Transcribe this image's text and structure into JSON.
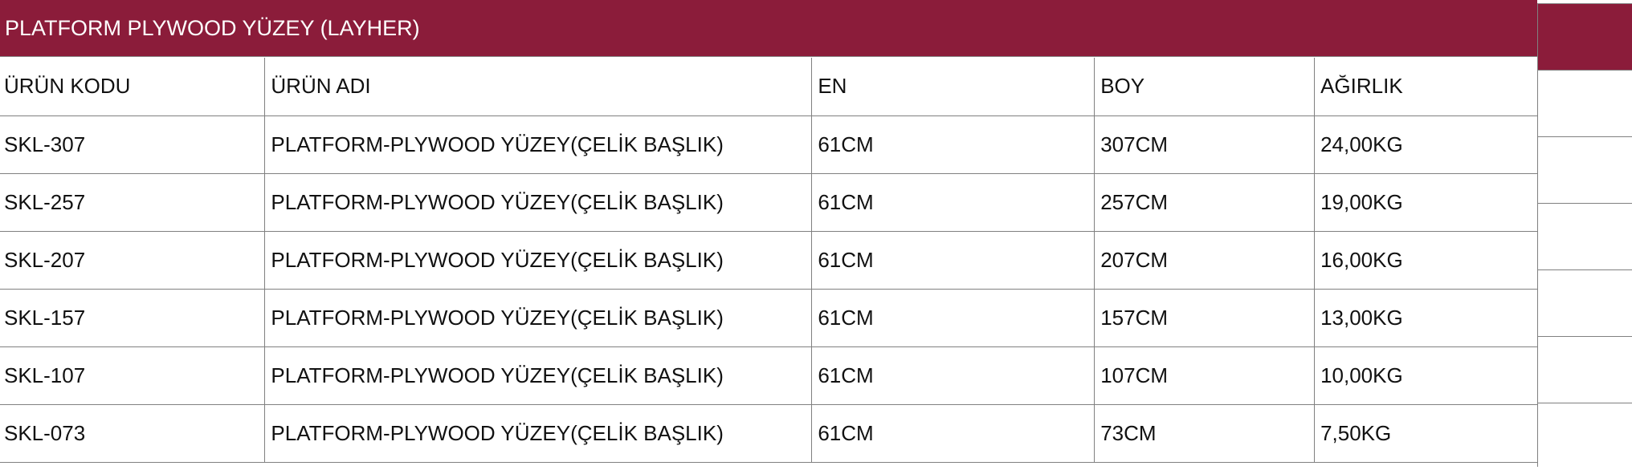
{
  "title": "PLATFORM PLYWOOD YÜZEY (LAYHER)",
  "colors": {
    "header_bg": "#8b1c3a",
    "border": "#808080"
  },
  "columns": [
    "ÜRÜN KODU",
    "ÜRÜN ADI",
    "EN",
    "BOY",
    "AĞIRLIK"
  ],
  "rows": [
    [
      "SKL-307",
      "PLATFORM-PLYWOOD YÜZEY(ÇELİK BAŞLIK)",
      "61CM",
      "307CM",
      "24,00KG"
    ],
    [
      "SKL-257",
      "PLATFORM-PLYWOOD YÜZEY(ÇELİK BAŞLIK)",
      "61CM",
      "257CM",
      "19,00KG"
    ],
    [
      "SKL-207",
      "PLATFORM-PLYWOOD YÜZEY(ÇELİK BAŞLIK)",
      "61CM",
      "207CM",
      "16,00KG"
    ],
    [
      "SKL-157",
      "PLATFORM-PLYWOOD YÜZEY(ÇELİK BAŞLIK)",
      "61CM",
      "157CM",
      "13,00KG"
    ],
    [
      "SKL-107",
      "PLATFORM-PLYWOOD YÜZEY(ÇELİK BAŞLIK)",
      "61CM",
      "107CM",
      "10,00KG"
    ],
    [
      "SKL-073",
      "PLATFORM-PLYWOOD YÜZEY(ÇELİK BAŞLIK)",
      "61CM",
      "73CM",
      "7,50KG"
    ]
  ]
}
